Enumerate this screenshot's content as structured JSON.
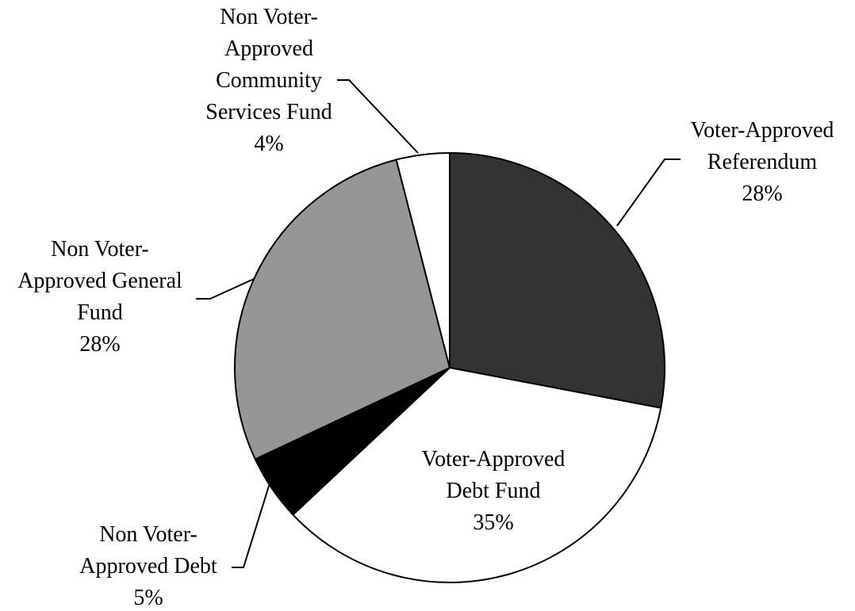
{
  "chart_data": {
    "type": "pie",
    "start_angle_deg": 0,
    "direction": "clockwise",
    "slices": [
      {
        "lines": [
          "Voter-Approved",
          "Referendum"
        ],
        "pct_label": "28%",
        "value": 28,
        "color": "#333333"
      },
      {
        "lines": [
          "Voter-Approved",
          "Debt Fund"
        ],
        "pct_label": "35%",
        "value": 35,
        "color": "#ffffff"
      },
      {
        "lines": [
          "Non Voter-",
          "Approved Debt"
        ],
        "pct_label": "5%",
        "value": 5,
        "color": "#000000"
      },
      {
        "lines": [
          "Non Voter-",
          "Approved General",
          "Fund"
        ],
        "pct_label": "28%",
        "value": 28,
        "color": "#969696"
      },
      {
        "lines": [
          "Non Voter-",
          "Approved",
          "Community",
          "Services Fund"
        ],
        "pct_label": "4%",
        "value": 4,
        "color": "#ffffff"
      }
    ]
  }
}
